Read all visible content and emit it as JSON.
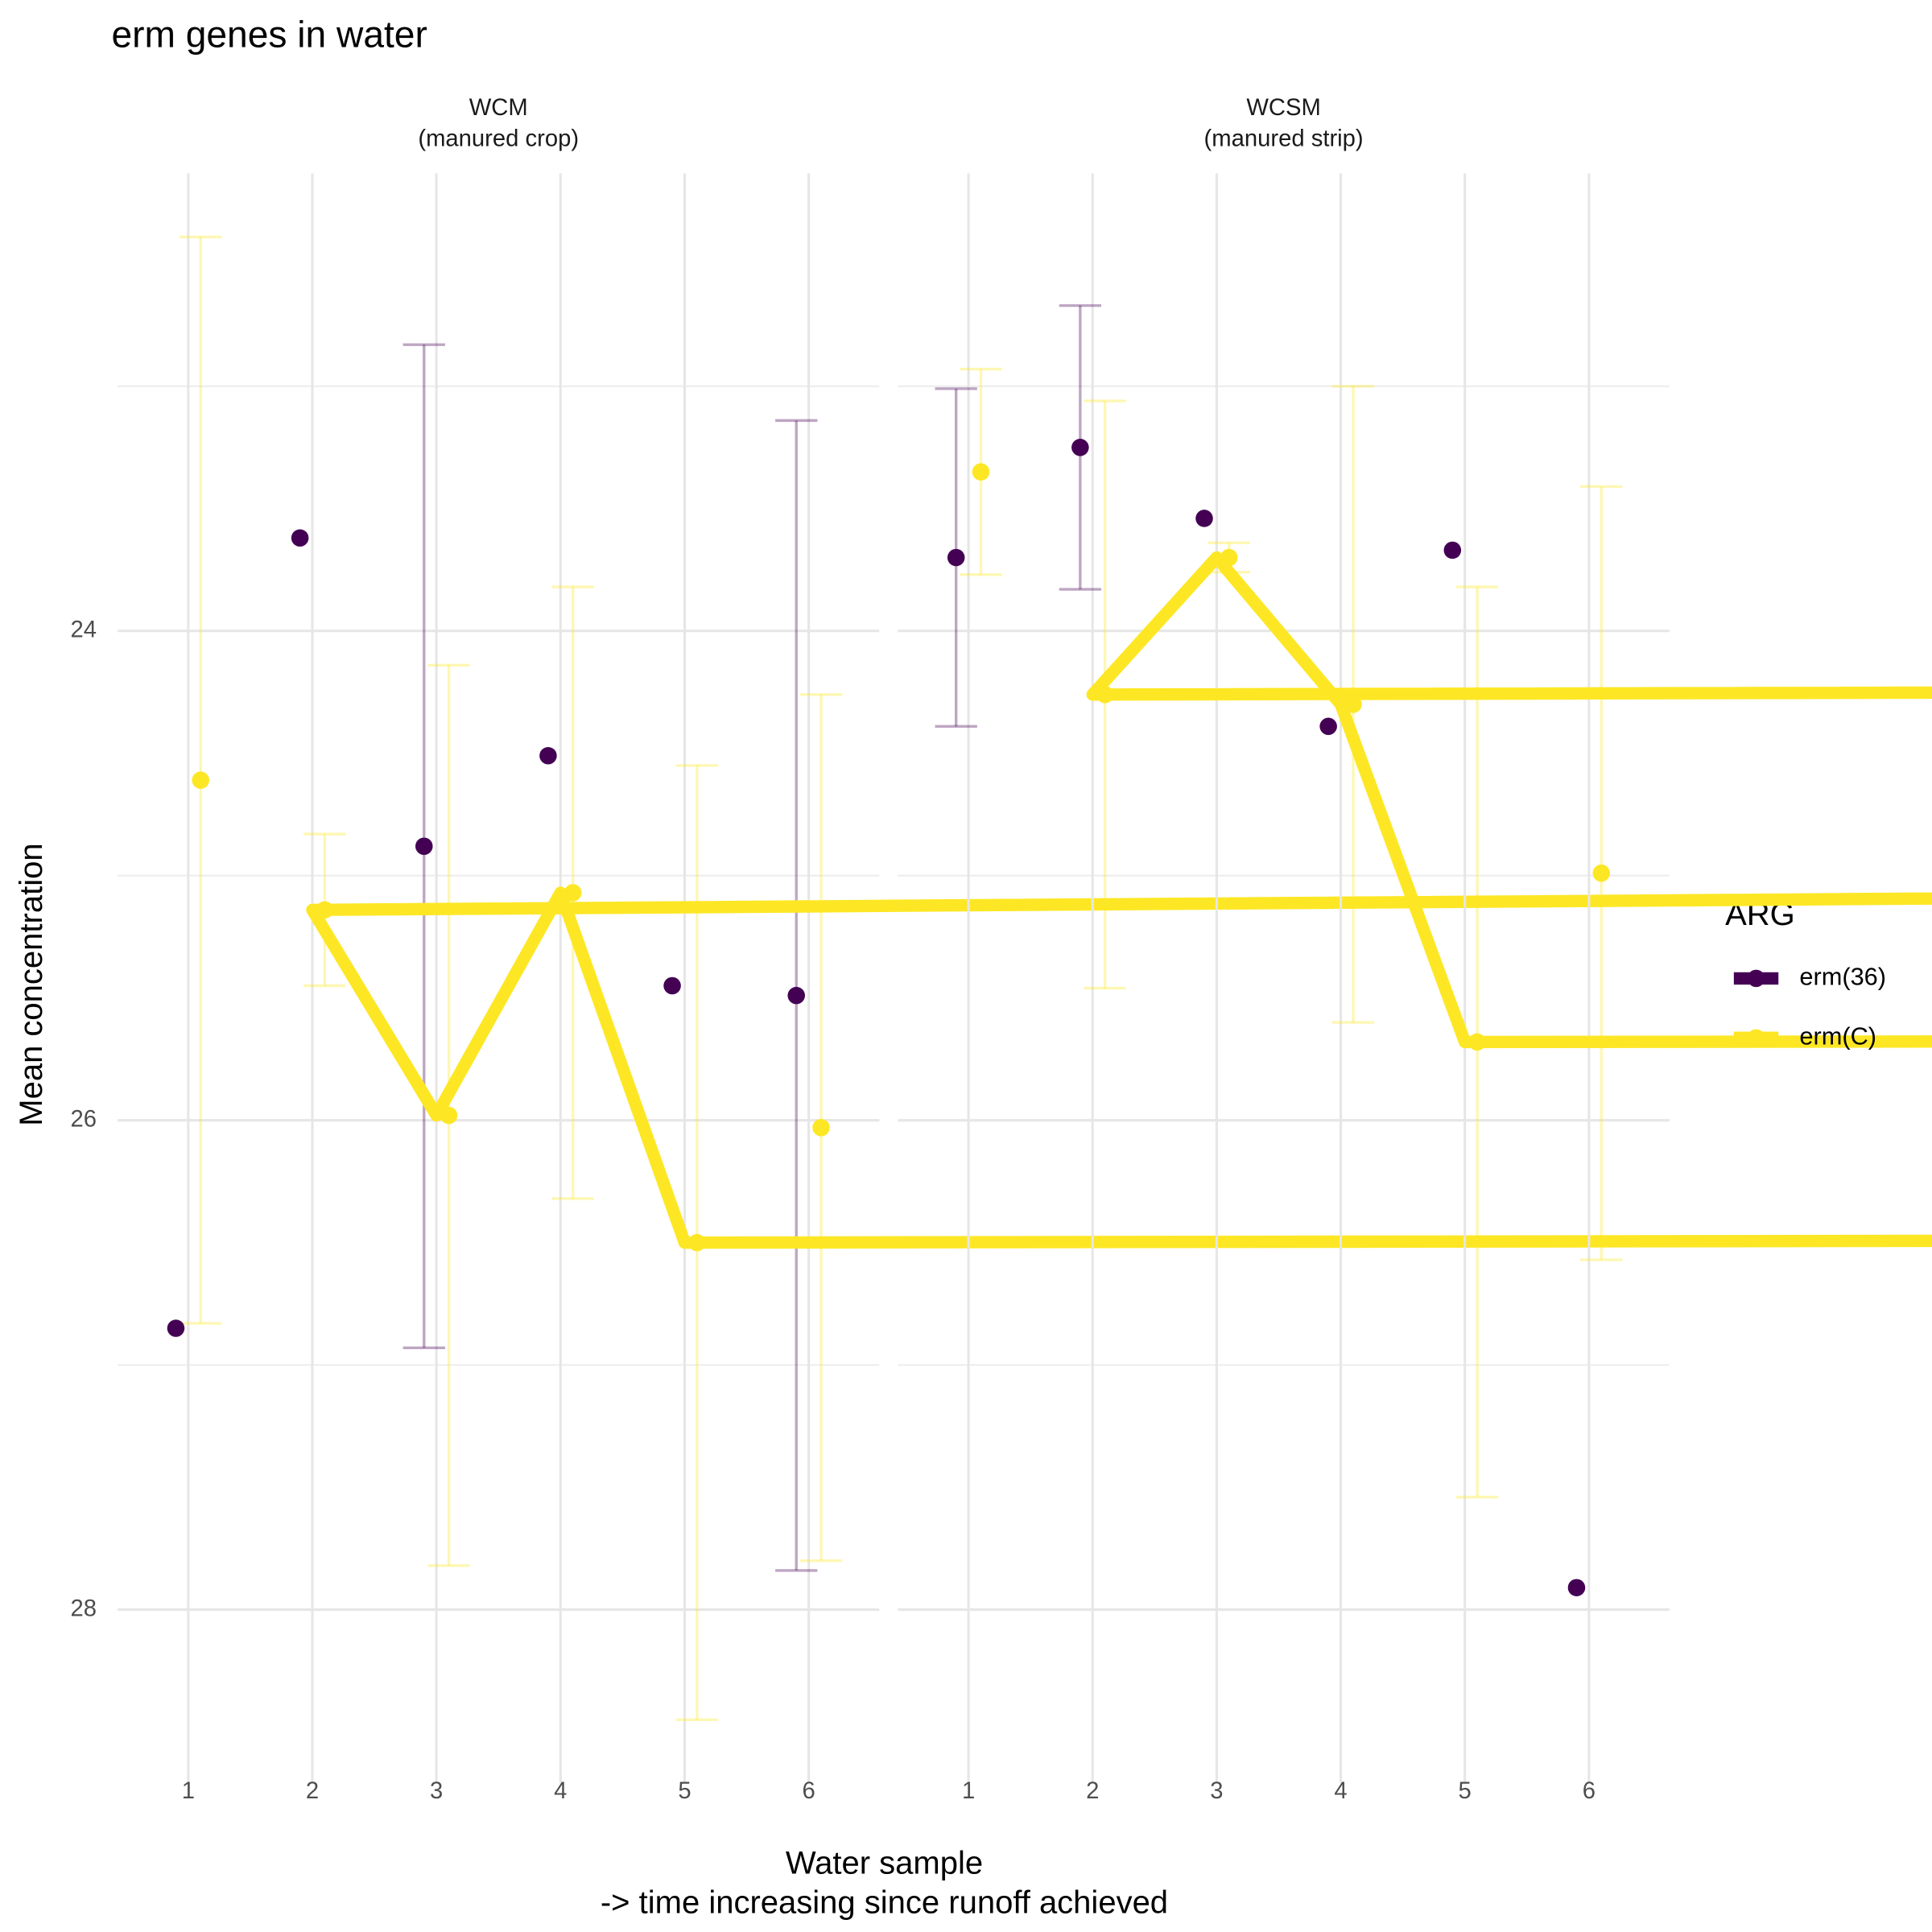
{
  "chart_data": {
    "type": "line",
    "title": "erm genes in water",
    "x_label": [
      "Water sample",
      "-> time increasing since runoff achieved"
    ],
    "y_label": "Mean concentration",
    "legend_title": "ARG",
    "categories": [
      1,
      2,
      3,
      4,
      5,
      6
    ],
    "ylim": [
      22.13,
      28.71
    ],
    "y_reversed": true,
    "yticks": [
      24,
      26,
      28
    ],
    "y_minor_grid": [
      23,
      25,
      27
    ],
    "grid": true,
    "legend_position": "right",
    "facets": [
      {
        "title": [
          "WCM",
          "(manured crop)"
        ],
        "series": [
          {
            "name": "erm(36)",
            "color": "#440154",
            "values": [
              26.85,
              23.62,
              24.88,
              24.51,
              25.45,
              25.49
            ],
            "errors": [
              null,
              null,
              2.05,
              null,
              null,
              2.35
            ]
          },
          {
            "name": "erm(C)",
            "color": "#FDE725",
            "values": [
              24.61,
              25.14,
              25.98,
              25.07,
              26.5,
              26.03
            ],
            "errors": [
              2.22,
              0.31,
              1.84,
              1.25,
              1.95,
              1.77
            ]
          }
        ]
      },
      {
        "title": [
          "WCSM",
          "(manured strip)"
        ],
        "series": [
          {
            "name": "erm(36)",
            "color": "#440154",
            "values": [
              23.7,
              23.25,
              23.54,
              24.39,
              23.67,
              27.91
            ],
            "errors": [
              0.69,
              0.58,
              null,
              null,
              null,
              null
            ]
          },
          {
            "name": "erm(C)",
            "color": "#FDE725",
            "values": [
              23.35,
              24.26,
              23.7,
              24.3,
              25.68,
              24.99
            ],
            "errors": [
              0.42,
              1.2,
              0.06,
              1.3,
              1.86,
              1.58
            ]
          }
        ]
      }
    ]
  }
}
